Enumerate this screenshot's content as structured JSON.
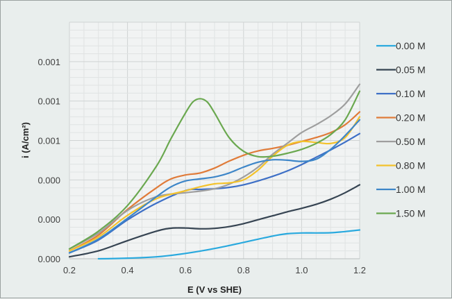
{
  "chart_data": {
    "type": "line",
    "xlabel": "E (V vs SHE)",
    "ylabel": "i (A/cm²)",
    "xlim": [
      0.2,
      1.2
    ],
    "ylim": [
      0,
      0.0012
    ],
    "x_ticks": [
      0.2,
      0.4,
      0.6,
      0.8,
      1.0,
      1.2
    ],
    "x_tick_labels": [
      "0.2",
      "0.4",
      "0.6",
      "0.8",
      "1.0",
      "1.2"
    ],
    "y_ticks": [
      0,
      0.0002,
      0.0004,
      0.0006,
      0.0008,
      0.001
    ],
    "y_tick_labels": [
      "0.000",
      "0.000",
      "0.000",
      "0.001",
      "0.001",
      "0.001"
    ],
    "grid": true,
    "legend_position": "right",
    "series": [
      {
        "name": "0.00 M",
        "color": "#29a9de",
        "x": [
          0.3,
          0.4,
          0.5,
          0.6,
          0.7,
          0.8,
          0.9,
          0.95,
          1.0,
          1.05,
          1.1,
          1.15,
          1.2
        ],
        "y": [
          0.0,
          3e-06,
          1e-05,
          2.7e-05,
          5.2e-05,
          8.3e-05,
          0.000115,
          0.000127,
          0.000131,
          0.000131,
          0.000132,
          0.000138,
          0.000146
        ]
      },
      {
        "name": "0.05 M",
        "color": "#364452",
        "x": [
          0.2,
          0.3,
          0.4,
          0.5,
          0.55,
          0.6,
          0.65,
          0.7,
          0.75,
          0.8,
          0.85,
          0.9,
          0.95,
          1.0,
          1.05,
          1.1,
          1.15,
          1.2
        ],
        "y": [
          1e-05,
          4e-05,
          9.2e-05,
          0.00014,
          0.000155,
          0.000156,
          0.000152,
          0.000154,
          0.000163,
          0.000178,
          0.000198,
          0.000218,
          0.000238,
          0.000256,
          0.000276,
          0.000302,
          0.000335,
          0.000375
        ]
      },
      {
        "name": "0.10 M",
        "color": "#3d6fc6",
        "x": [
          0.2,
          0.3,
          0.4,
          0.5,
          0.6,
          0.65,
          0.7,
          0.75,
          0.8,
          0.85,
          0.9,
          0.95,
          1.0,
          1.05,
          1.1,
          1.15,
          1.2
        ],
        "y": [
          3e-05,
          9.5e-05,
          0.000197,
          0.000282,
          0.000346,
          0.000352,
          0.000355,
          0.000362,
          0.000375,
          0.000395,
          0.000418,
          0.000445,
          0.000478,
          0.000515,
          0.000552,
          0.000592,
          0.000635
        ]
      },
      {
        "name": "0.20 M",
        "color": "#e07b39",
        "x": [
          0.2,
          0.3,
          0.4,
          0.5,
          0.55,
          0.6,
          0.65,
          0.7,
          0.75,
          0.8,
          0.85,
          0.9,
          0.95,
          1.0,
          1.05,
          1.1,
          1.15,
          1.2
        ],
        "y": [
          4e-05,
          0.00012,
          0.00025,
          0.00036,
          0.000405,
          0.000425,
          0.000435,
          0.00046,
          0.000495,
          0.000525,
          0.000547,
          0.00056,
          0.000575,
          0.000595,
          0.000615,
          0.00064,
          0.00068,
          0.000745
        ]
      },
      {
        "name": "0.50 M",
        "color": "#9e9e9e",
        "x": [
          0.2,
          0.3,
          0.4,
          0.5,
          0.6,
          0.65,
          0.7,
          0.75,
          0.8,
          0.85,
          0.9,
          0.95,
          1.0,
          1.05,
          1.1,
          1.15,
          1.2
        ],
        "y": [
          5e-05,
          0.00013,
          0.000245,
          0.000315,
          0.000335,
          0.000343,
          0.000355,
          0.000378,
          0.000415,
          0.000465,
          0.00053,
          0.000585,
          0.00064,
          0.00068,
          0.000725,
          0.000785,
          0.000885
        ]
      },
      {
        "name": "0.80 M",
        "color": "#f3c22b",
        "x": [
          0.2,
          0.3,
          0.4,
          0.5,
          0.6,
          0.65,
          0.7,
          0.75,
          0.8,
          0.85,
          0.9,
          0.95,
          1.0,
          1.05,
          1.1,
          1.15,
          1.2
        ],
        "y": [
          4e-05,
          0.00011,
          0.00022,
          0.000305,
          0.000345,
          0.000365,
          0.00038,
          0.000385,
          0.0004,
          0.00045,
          0.00052,
          0.000575,
          0.000595,
          0.00059,
          0.000585,
          0.000615,
          0.00072
        ]
      },
      {
        "name": "1.00 M",
        "color": "#3d86c8",
        "x": [
          0.2,
          0.3,
          0.4,
          0.5,
          0.55,
          0.6,
          0.65,
          0.7,
          0.75,
          0.8,
          0.85,
          0.9,
          0.95,
          1.0,
          1.05,
          1.1,
          1.15,
          1.2
        ],
        "y": [
          3e-05,
          0.0001,
          0.000205,
          0.000315,
          0.000365,
          0.000395,
          0.000405,
          0.000415,
          0.000435,
          0.000465,
          0.00049,
          0.000502,
          0.0005,
          0.000494,
          0.000505,
          0.000555,
          0.000625,
          0.000705
        ]
      },
      {
        "name": "1.50 M",
        "color": "#6aa84f",
        "x": [
          0.2,
          0.3,
          0.4,
          0.5,
          0.55,
          0.6,
          0.625,
          0.65,
          0.675,
          0.7,
          0.75,
          0.8,
          0.85,
          0.9,
          0.95,
          1.0,
          1.05,
          1.1,
          1.15,
          1.2
        ],
        "y": [
          5e-05,
          0.00014,
          0.00027,
          0.00047,
          0.00061,
          0.00074,
          0.000795,
          0.000812,
          0.000795,
          0.00074,
          0.000615,
          0.000545,
          0.000518,
          0.00052,
          0.000535,
          0.000555,
          0.000585,
          0.00063,
          0.000705,
          0.00085
        ]
      }
    ]
  }
}
